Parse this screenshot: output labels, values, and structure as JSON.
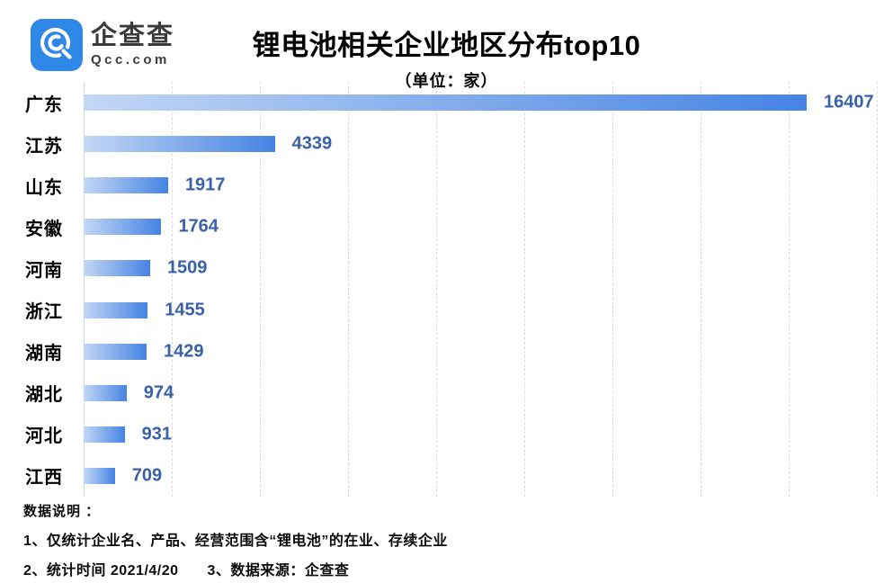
{
  "brand": {
    "name": "企查查",
    "domain": "Qcc.com",
    "logo_blue": "#2F87E8",
    "text_color": "#3B3B3B"
  },
  "header": {
    "title": "锂电池相关企业地区分布top10",
    "subtitle": "（单位：家）"
  },
  "chart_data": {
    "type": "bar",
    "orientation": "horizontal",
    "title": "锂电池相关企业地区分布top10",
    "unit_label": "（单位：家）",
    "categories": [
      "广东",
      "江苏",
      "山东",
      "安徽",
      "河南",
      "浙江",
      "湖南",
      "湖北",
      "河北",
      "江西"
    ],
    "values": [
      16407,
      4339,
      1917,
      1764,
      1509,
      1455,
      1429,
      974,
      931,
      709
    ],
    "value_labels": true,
    "xlim": [
      0,
      16407
    ],
    "grid": true,
    "gridline_interval": 2000,
    "gridline_color": "#DDDDDD",
    "bar_gradient": [
      "#C3D7F5",
      "#4583E3"
    ],
    "value_label_color": "#3A61A8",
    "category_label_color": "#000000",
    "legend": "none"
  },
  "footer": {
    "heading": "数据说明 ：",
    "note1": "1、仅统计企业名、产品、经营范围含“锂电池”的在业、存续企业",
    "note2a": "2、统计时间 2021/4/20",
    "note2b": "3、数据来源：企查查"
  }
}
